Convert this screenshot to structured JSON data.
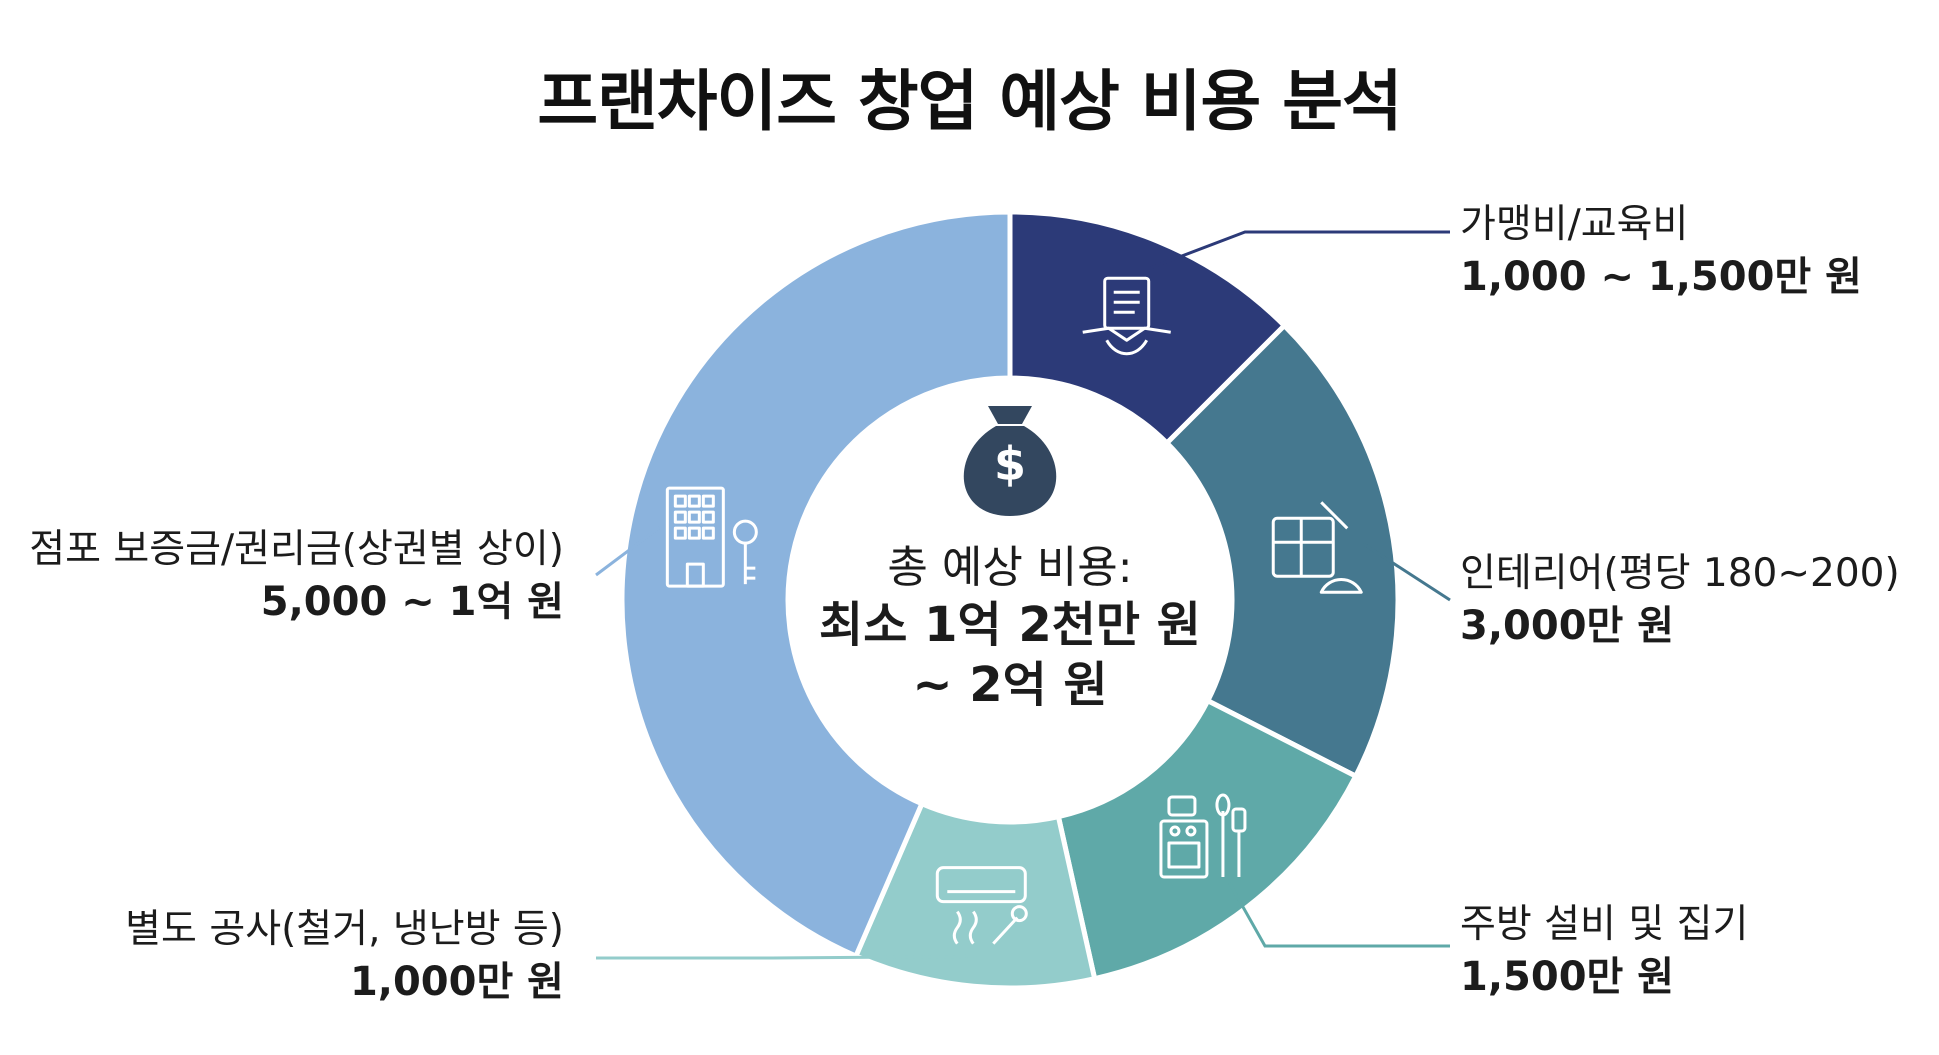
{
  "chart_data": {
    "type": "pie",
    "title": "프랜차이즈 창업 예상 비용 분석",
    "variant": "donut",
    "center": {
      "label": "총 예상 비용:",
      "value_line1": "최소 1억 2천만 원",
      "value_line2": "~ 2억 원",
      "icon": "money-bag-icon"
    },
    "slices": [
      {
        "label": "가맹비/교육비",
        "value_text": "1,000 ~ 1,500만 원",
        "value": 12.5,
        "color": "#2c3a78",
        "icon": "contract-handshake-icon"
      },
      {
        "label": "인테리어(평당 180~200)",
        "value_text": "3,000만 원",
        "value": 20,
        "color": "#45788f",
        "icon": "blueprint-hardhat-icon"
      },
      {
        "label": "주방 설비 및 집기",
        "value_text": "1,500만 원",
        "value": 14,
        "color": "#5fa9a8",
        "icon": "kitchen-stove-icon"
      },
      {
        "label": "별도 공사(철거, 냉난방 등)",
        "value_text": "1,000만 원",
        "value": 10,
        "color": "#93cccb",
        "icon": "aircon-wrench-icon"
      },
      {
        "label": "점포 보증금/권리금(상권별 상이)",
        "value_text": "5,000 ~ 1억 원",
        "value": 43.5,
        "color": "#8bb3dd",
        "icon": "building-key-icon"
      }
    ]
  }
}
